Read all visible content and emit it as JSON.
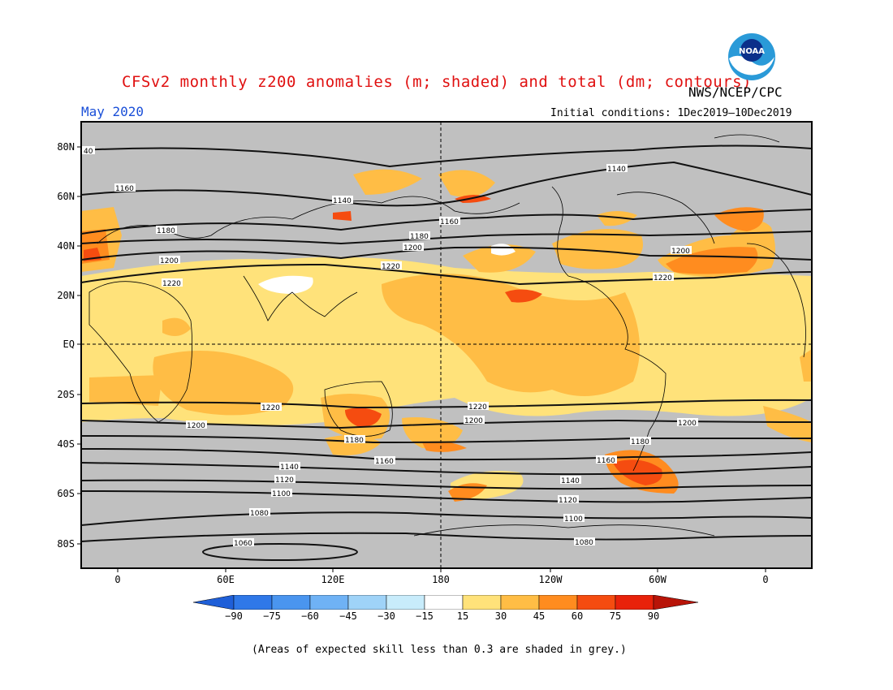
{
  "header": {
    "title": "CFSv2 monthly z200 anomalies (m; shaded) and total (dm; contours)",
    "agency": "NWS/NCEP/CPC",
    "period": "May 2020",
    "initial_conditions": "Initial conditions: 1Dec2019—10Dec2019",
    "logo_text": "NOAA"
  },
  "map": {
    "lat_labels": [
      "80N",
      "60N",
      "40N",
      "20N",
      "EQ",
      "20S",
      "40S",
      "60S",
      "80S"
    ],
    "lon_labels": [
      "0",
      "60E",
      "120E",
      "180",
      "120W",
      "60W",
      "0"
    ],
    "contour_labels": [
      "40",
      "1160",
      "1140",
      "1140",
      "1160",
      "1180",
      "1180",
      "1200",
      "1200",
      "1220",
      "1200",
      "1220",
      "1220",
      "1220",
      "1220",
      "1200",
      "1200",
      "1200",
      "1180",
      "1160",
      "1180",
      "1160",
      "1140",
      "1140",
      "1120",
      "1120",
      "1100",
      "1100",
      "1080",
      "1080",
      "1060"
    ],
    "colors": {
      "ocean_grey": "#c0c0c0",
      "pale": "#ffe27a",
      "light_orange": "#ffbd45",
      "orange": "#ff8c1f",
      "red_orange": "#f54c10",
      "white": "#ffffff"
    }
  },
  "colorbar": {
    "labels": [
      "−90",
      "−75",
      "−60",
      "−45",
      "−30",
      "−15",
      "15",
      "30",
      "45",
      "60",
      "75",
      "90"
    ],
    "colors": [
      "#1f5fd8",
      "#2f78e8",
      "#4a95ef",
      "#6fb2f5",
      "#9fd3f8",
      "#c8ecfb",
      "#ffffff",
      "#ffe27a",
      "#ffbd45",
      "#ff8c1f",
      "#f54c10",
      "#e8220a",
      "#b81408"
    ]
  },
  "footnote": "(Areas of expected skill less than 0.3 are shaded in grey.)"
}
